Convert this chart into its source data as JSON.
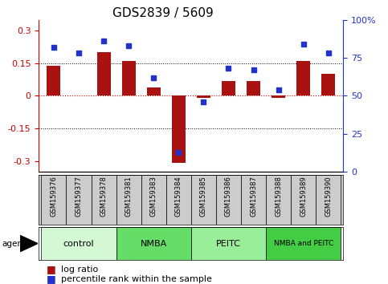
{
  "title": "GDS2839 / 5609",
  "samples": [
    "GSM159376",
    "GSM159377",
    "GSM159378",
    "GSM159381",
    "GSM159383",
    "GSM159384",
    "GSM159385",
    "GSM159386",
    "GSM159387",
    "GSM159388",
    "GSM159389",
    "GSM159390"
  ],
  "log_ratio": [
    0.14,
    0.0,
    0.2,
    0.16,
    0.04,
    -0.31,
    -0.01,
    0.07,
    0.07,
    -0.01,
    0.16,
    0.1
  ],
  "percentile": [
    82,
    78,
    86,
    83,
    62,
    13,
    46,
    68,
    67,
    54,
    84,
    78
  ],
  "groups": [
    {
      "label": "control",
      "start": 0,
      "end": 3,
      "color": "#d4f7d4"
    },
    {
      "label": "NMBA",
      "start": 3,
      "end": 6,
      "color": "#66dd66"
    },
    {
      "label": "PEITC",
      "start": 6,
      "end": 9,
      "color": "#99ee99"
    },
    {
      "label": "NMBA and PEITC",
      "start": 9,
      "end": 12,
      "color": "#44cc44"
    }
  ],
  "bar_color": "#aa1111",
  "dot_color": "#2233cc",
  "ylim_left": [
    -0.35,
    0.35
  ],
  "ylim_right": [
    0,
    100
  ],
  "yticks_left": [
    -0.3,
    -0.15,
    0,
    0.15,
    0.3
  ],
  "yticks_right": [
    0,
    25,
    50,
    75,
    100
  ],
  "left_tick_labels": [
    "-0.3",
    "-0.15",
    "0",
    "0.15",
    "0.3"
  ],
  "right_tick_labels": [
    "0",
    "25",
    "50",
    "75",
    "100%"
  ],
  "hlines_dotted": [
    0.15,
    -0.15
  ],
  "hline_zero_color": "#cc0000",
  "bg_color": "#ffffff",
  "sample_bg": "#cccccc",
  "title_fontsize": 11,
  "axis_fontsize": 8,
  "sample_fontsize": 6,
  "group_fontsize": 8,
  "legend_fontsize": 8,
  "bar_width": 0.55
}
